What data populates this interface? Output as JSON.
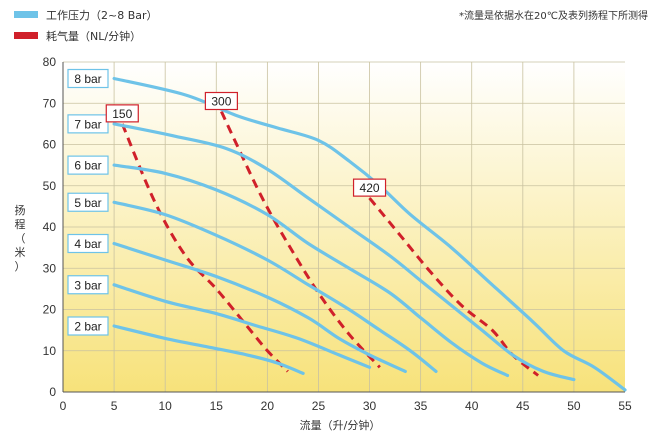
{
  "chart_data": {
    "type": "line",
    "legend": [
      {
        "label": "工作压力（2~8 Bar）",
        "color": "#6ec3e8",
        "style": "solid"
      },
      {
        "label": "耗气量（NL/分钟）",
        "color": "#d0202a",
        "style": "dashed"
      }
    ],
    "note": "*流量是依据水在20℃及表列扬程下所测得",
    "xlabel": "流量（升/分钟）",
    "ylabel": [
      "扬",
      "程",
      "（",
      "米",
      "）"
    ],
    "xlim": [
      0,
      55
    ],
    "ylim": [
      0,
      80
    ],
    "xticks": [
      0,
      5,
      10,
      15,
      20,
      25,
      30,
      35,
      40,
      45,
      50,
      55
    ],
    "yticks": [
      0,
      10,
      20,
      30,
      40,
      50,
      60,
      70,
      80
    ],
    "pressure_series": [
      {
        "name": "8 bar",
        "points": [
          [
            5,
            76
          ],
          [
            12,
            72
          ],
          [
            17,
            67
          ],
          [
            21,
            64
          ],
          [
            25,
            61
          ],
          [
            28,
            56
          ],
          [
            31,
            50
          ],
          [
            34,
            43
          ],
          [
            38,
            35
          ],
          [
            42,
            26
          ],
          [
            46,
            17
          ],
          [
            49,
            10
          ],
          [
            52,
            6
          ],
          [
            55,
            0.5
          ]
        ]
      },
      {
        "name": "7 bar",
        "points": [
          [
            5,
            65
          ],
          [
            11,
            62
          ],
          [
            16,
            59
          ],
          [
            20,
            54
          ],
          [
            24,
            47
          ],
          [
            28,
            40
          ],
          [
            32,
            33
          ],
          [
            35,
            27
          ],
          [
            38,
            21
          ],
          [
            41,
            15
          ],
          [
            44,
            9
          ],
          [
            47,
            5
          ],
          [
            50,
            3
          ]
        ]
      },
      {
        "name": "6 bar",
        "points": [
          [
            5,
            55
          ],
          [
            10,
            53
          ],
          [
            15,
            49
          ],
          [
            20,
            43
          ],
          [
            24,
            36
          ],
          [
            28,
            30
          ],
          [
            32,
            24
          ],
          [
            35,
            18
          ],
          [
            38,
            12
          ],
          [
            41,
            7
          ],
          [
            43.5,
            4
          ]
        ]
      },
      {
        "name": "5 bar",
        "points": [
          [
            5,
            46
          ],
          [
            10,
            43
          ],
          [
            15,
            38
          ],
          [
            20,
            32
          ],
          [
            24,
            26
          ],
          [
            28,
            20
          ],
          [
            31,
            15
          ],
          [
            34,
            10
          ],
          [
            36.5,
            5
          ]
        ]
      },
      {
        "name": "4 bar",
        "points": [
          [
            5,
            36
          ],
          [
            10,
            32
          ],
          [
            15,
            28
          ],
          [
            20,
            23
          ],
          [
            24,
            18
          ],
          [
            27,
            13
          ],
          [
            30,
            9
          ],
          [
            33.5,
            5
          ]
        ]
      },
      {
        "name": "3 bar",
        "points": [
          [
            5,
            26
          ],
          [
            10,
            22
          ],
          [
            15,
            19
          ],
          [
            19,
            16
          ],
          [
            23,
            13
          ],
          [
            27,
            9
          ],
          [
            30,
            6
          ]
        ]
      },
      {
        "name": "2 bar",
        "points": [
          [
            5,
            16
          ],
          [
            10,
            13
          ],
          [
            14,
            11
          ],
          [
            18,
            9
          ],
          [
            21,
            7
          ],
          [
            23.5,
            4.5
          ]
        ]
      }
    ],
    "air_series": [
      {
        "name": "150",
        "points": [
          [
            5.8,
            65
          ],
          [
            9,
            46
          ],
          [
            12,
            33
          ],
          [
            15,
            25
          ],
          [
            18,
            16
          ],
          [
            20,
            10
          ],
          [
            22,
            5
          ]
        ]
      },
      {
        "name": "300",
        "points": [
          [
            15.5,
            68
          ],
          [
            17,
            60
          ],
          [
            19.5,
            47
          ],
          [
            22,
            36
          ],
          [
            25,
            24
          ],
          [
            28,
            14
          ],
          [
            31,
            6
          ]
        ]
      },
      {
        "name": "420",
        "points": [
          [
            30,
            47
          ],
          [
            33,
            38
          ],
          [
            36,
            29
          ],
          [
            39,
            21
          ],
          [
            42,
            15
          ],
          [
            44,
            9
          ],
          [
            46.5,
            4
          ]
        ]
      }
    ]
  }
}
